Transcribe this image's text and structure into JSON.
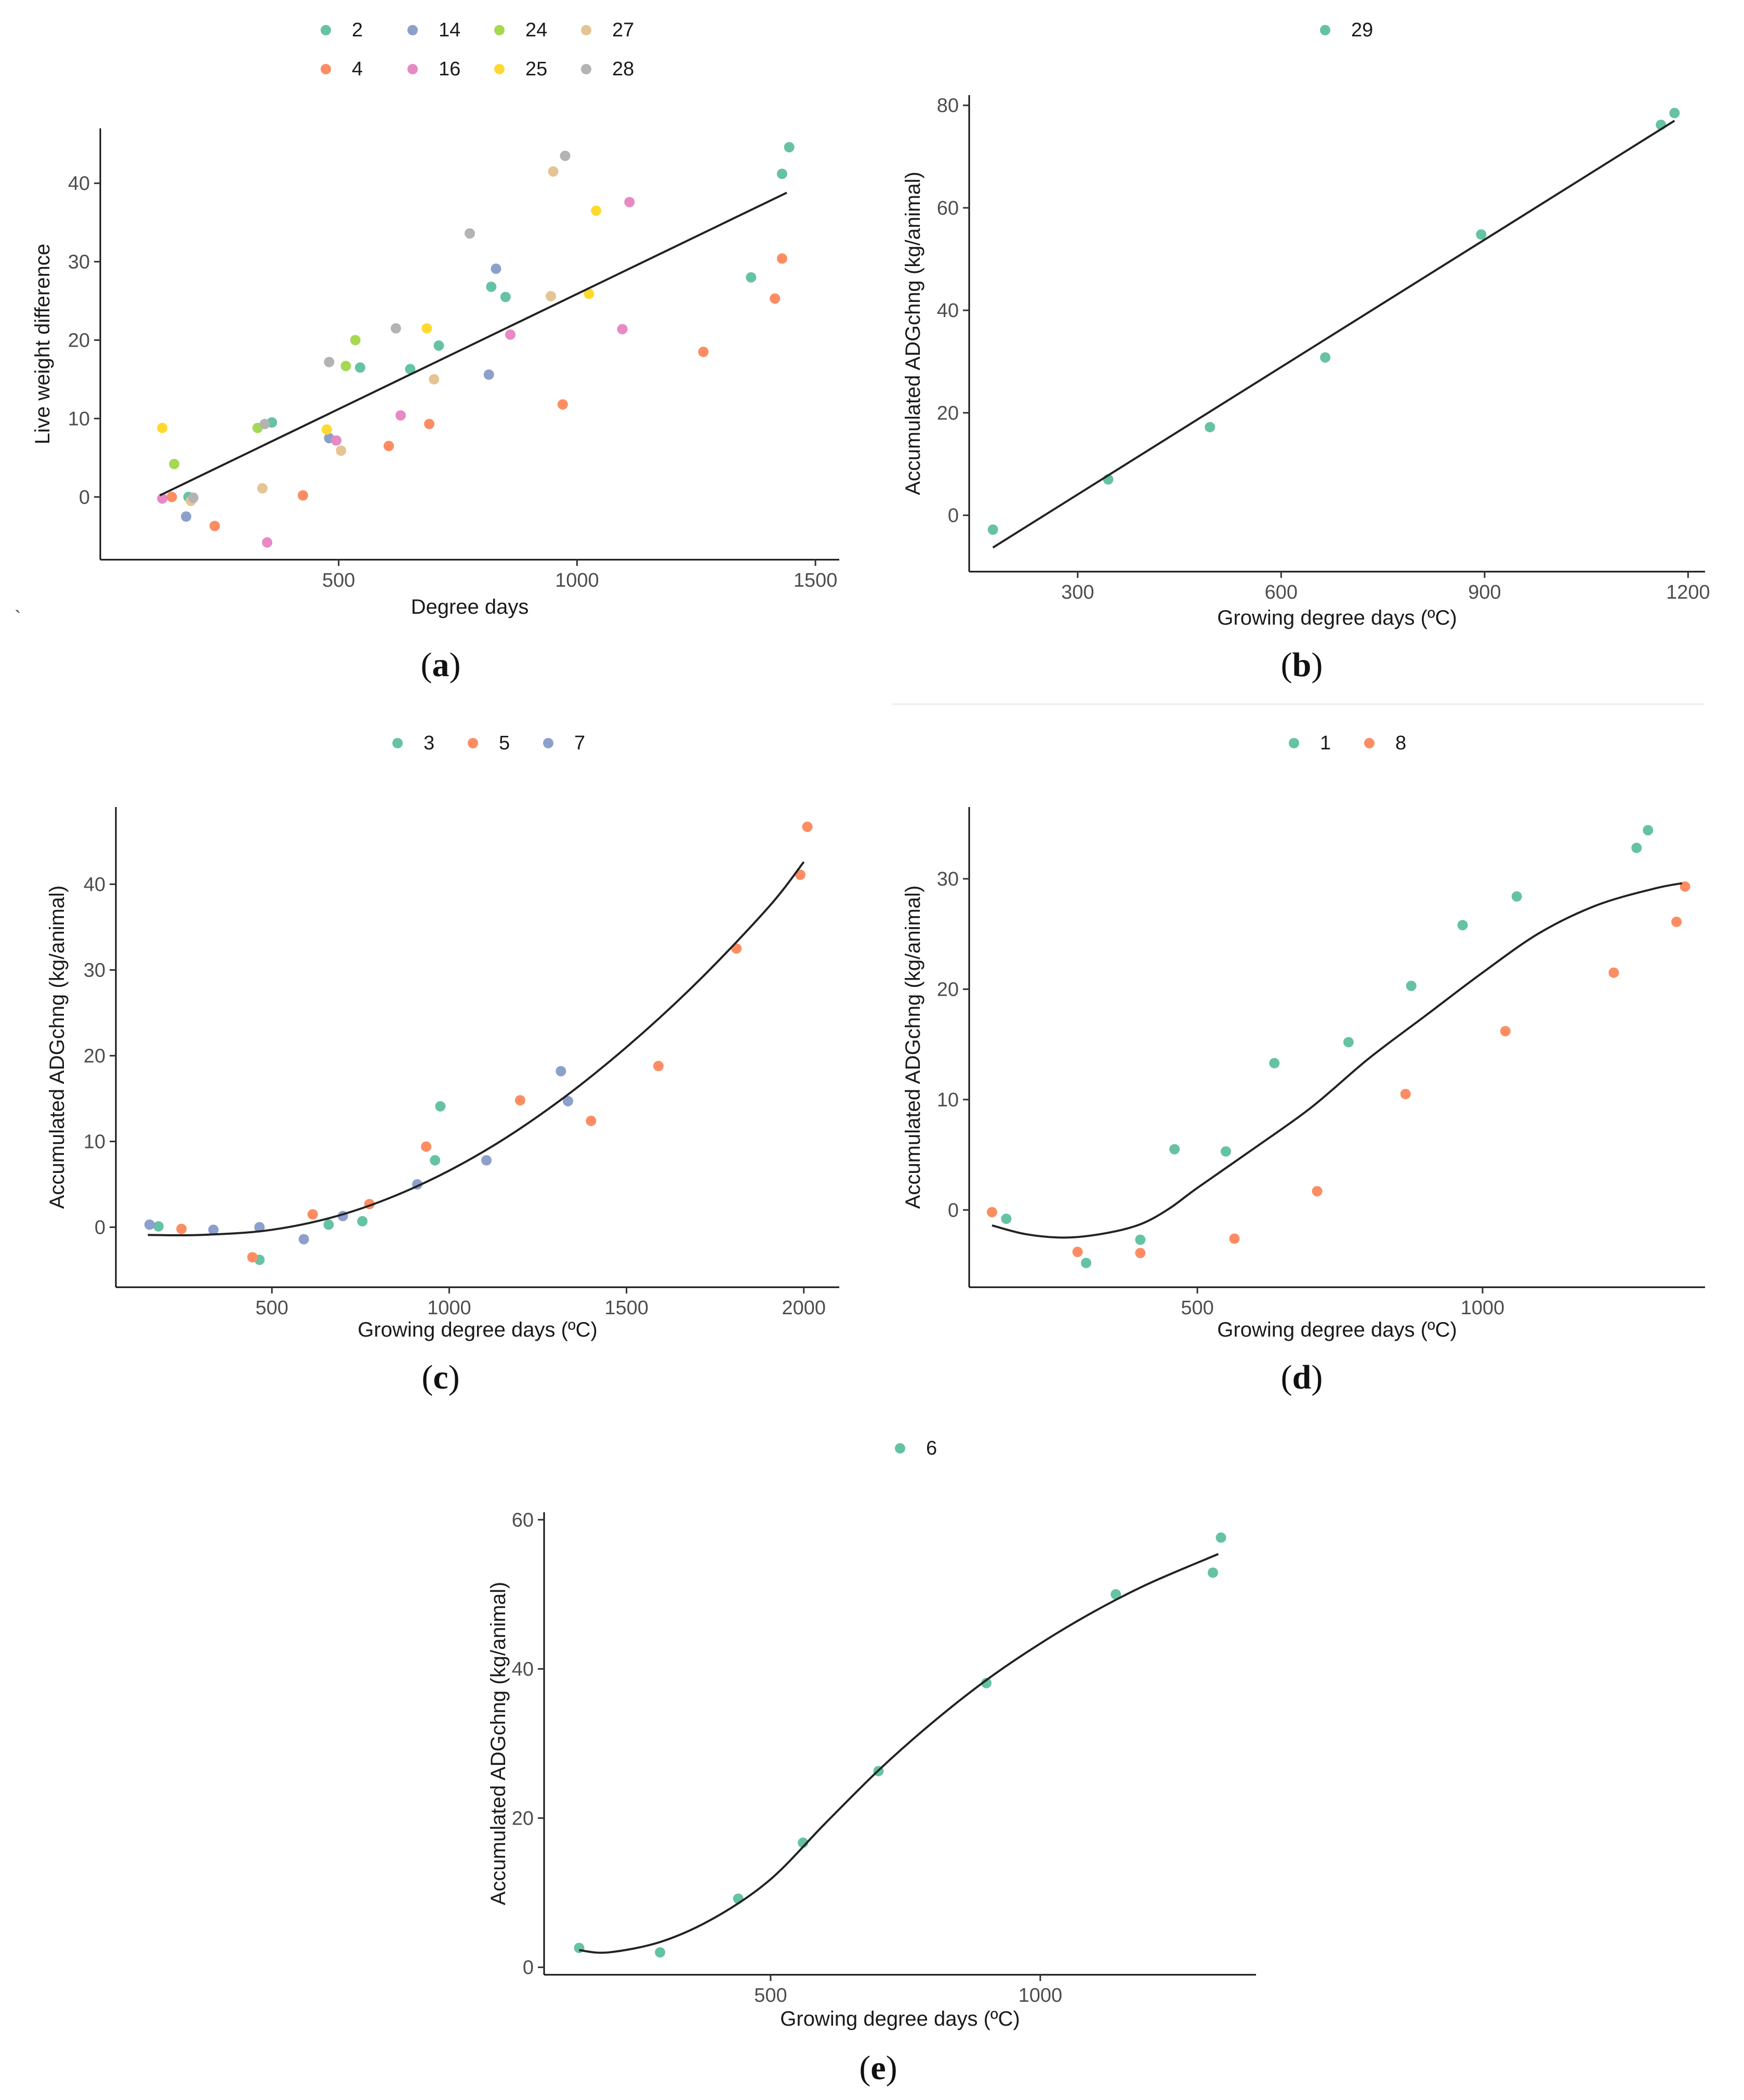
{
  "figure": {
    "stray_mark": "`"
  },
  "chart_data": [
    {
      "id": "a",
      "type": "scatter",
      "panel_label": "a",
      "xlabel": "Degree days",
      "ylabel": "Live weight difference",
      "xlim": [
        0,
        1550
      ],
      "ylim": [
        -8,
        47
      ],
      "xticks": [
        500,
        1000,
        1500
      ],
      "yticks": [
        0,
        10,
        20,
        30,
        40
      ],
      "legend_position": "top",
      "trend": {
        "type": "linear",
        "points": [
          [
            125,
            0.2
          ],
          [
            1440,
            38.8
          ]
        ]
      },
      "series": [
        {
          "name": "2",
          "color": "#66c2a5",
          "points": [
            [
              185,
              0
            ],
            [
              360,
              9.5
            ],
            [
              545,
              16.5
            ],
            [
              650,
              16.3
            ],
            [
              710,
              19.3
            ],
            [
              820,
              26.8
            ],
            [
              850,
              25.5
            ],
            [
              1365,
              28
            ],
            [
              1430,
              41.2
            ],
            [
              1445,
              44.6
            ]
          ]
        },
        {
          "name": "4",
          "color": "#fc8d62",
          "points": [
            [
              150,
              0
            ],
            [
              240,
              -3.7
            ],
            [
              425,
              0.2
            ],
            [
              605,
              6.5
            ],
            [
              690,
              9.3
            ],
            [
              970,
              11.8
            ],
            [
              1265,
              18.5
            ],
            [
              1415,
              25.3
            ],
            [
              1430,
              30.4
            ]
          ]
        },
        {
          "name": "14",
          "color": "#8da0cb",
          "points": [
            [
              180,
              -2.5
            ],
            [
              480,
              7.5
            ],
            [
              815,
              15.6
            ],
            [
              830,
              29.1
            ]
          ]
        },
        {
          "name": "16",
          "color": "#e78ac3",
          "points": [
            [
              130,
              -0.2
            ],
            [
              350,
              -5.8
            ],
            [
              495,
              7.2
            ],
            [
              630,
              10.4
            ],
            [
              860,
              20.7
            ],
            [
              1095,
              21.4
            ],
            [
              1110,
              37.6
            ]
          ]
        },
        {
          "name": "24",
          "color": "#a6d854",
          "points": [
            [
              155,
              4.2
            ],
            [
              330,
              8.8
            ],
            [
              515,
              16.7
            ],
            [
              535,
              20
            ]
          ]
        },
        {
          "name": "25",
          "color": "#ffd92f",
          "points": [
            [
              130,
              8.8
            ],
            [
              475,
              8.6
            ],
            [
              685,
              21.5
            ],
            [
              1025,
              25.9
            ],
            [
              1040,
              36.5
            ]
          ]
        },
        {
          "name": "27",
          "color": "#e5c494",
          "points": [
            [
              190,
              -0.5
            ],
            [
              340,
              1.1
            ],
            [
              505,
              5.9
            ],
            [
              700,
              15
            ],
            [
              945,
              25.6
            ],
            [
              950,
              41.5
            ]
          ]
        },
        {
          "name": "28",
          "color": "#b3b3b3",
          "points": [
            [
              195,
              -0.1
            ],
            [
              345,
              9.3
            ],
            [
              480,
              17.2
            ],
            [
              620,
              21.5
            ],
            [
              775,
              33.6
            ],
            [
              975,
              43.5
            ]
          ]
        }
      ]
    },
    {
      "id": "b",
      "type": "scatter",
      "panel_label": "b",
      "xlabel": "Growing degree days (ºC)",
      "ylabel": "Accumulated ADGchng (kg/animal)",
      "xlim": [
        140,
        1225
      ],
      "ylim": [
        -11,
        82
      ],
      "xticks": [
        300,
        600,
        900,
        1200
      ],
      "yticks": [
        0,
        20,
        40,
        60,
        80
      ],
      "legend_position": "top",
      "trend": {
        "type": "linear",
        "points": [
          [
            175,
            -6.3
          ],
          [
            1180,
            77
          ]
        ]
      },
      "series": [
        {
          "name": "29",
          "color": "#66c2a5",
          "points": [
            [
              175,
              -2.8
            ],
            [
              345,
              7
            ],
            [
              495,
              17.2
            ],
            [
              665,
              30.8
            ],
            [
              895,
              54.8
            ],
            [
              1160,
              76.2
            ],
            [
              1180,
              78.5
            ]
          ]
        }
      ]
    },
    {
      "id": "c",
      "type": "scatter",
      "panel_label": "c",
      "xlabel": "Growing degree days (ºC)",
      "ylabel": "Accumulated ADGchng (kg/animal)",
      "xlim": [
        60,
        2100
      ],
      "ylim": [
        -7,
        49
      ],
      "xticks": [
        500,
        1000,
        1500,
        2000
      ],
      "yticks": [
        0,
        10,
        20,
        30,
        40
      ],
      "legend_position": "top",
      "trend": {
        "type": "smooth",
        "points": [
          [
            150,
            -0.9
          ],
          [
            300,
            -0.9
          ],
          [
            500,
            -0.3
          ],
          [
            700,
            1.5
          ],
          [
            900,
            4.6
          ],
          [
            1100,
            8.9
          ],
          [
            1300,
            14.4
          ],
          [
            1500,
            21
          ],
          [
            1700,
            28.6
          ],
          [
            1900,
            37.3
          ],
          [
            2000,
            42.6
          ]
        ]
      },
      "series": [
        {
          "name": "3",
          "color": "#66c2a5",
          "points": [
            [
              180,
              0.1
            ],
            [
              465,
              -3.8
            ],
            [
              660,
              0.3
            ],
            [
              755,
              0.7
            ],
            [
              960,
              7.8
            ],
            [
              975,
              14.1
            ]
          ]
        },
        {
          "name": "5",
          "color": "#fc8d62",
          "points": [
            [
              245,
              -0.2
            ],
            [
              445,
              -3.5
            ],
            [
              615,
              1.5
            ],
            [
              775,
              2.7
            ],
            [
              935,
              9.4
            ],
            [
              1200,
              14.8
            ],
            [
              1400,
              12.4
            ],
            [
              1590,
              18.8
            ],
            [
              1810,
              32.5
            ],
            [
              1990,
              41.1
            ],
            [
              2010,
              46.7
            ]
          ]
        },
        {
          "name": "7",
          "color": "#8da0cb",
          "points": [
            [
              155,
              0.3
            ],
            [
              335,
              -0.3
            ],
            [
              465,
              0
            ],
            [
              590,
              -1.4
            ],
            [
              700,
              1.3
            ],
            [
              910,
              5
            ],
            [
              1105,
              7.8
            ],
            [
              1315,
              18.2
            ],
            [
              1335,
              14.7
            ]
          ]
        }
      ]
    },
    {
      "id": "d",
      "type": "scatter",
      "panel_label": "d",
      "xlabel": "Growing degree days (ºC)",
      "ylabel": "Accumulated ADGchng (kg/animal)",
      "xlim": [
        100,
        1390
      ],
      "ylim": [
        -7,
        36.5
      ],
      "xticks": [
        500,
        1000
      ],
      "yticks": [
        0,
        10,
        20,
        30
      ],
      "legend_position": "top",
      "trend": {
        "type": "smooth",
        "points": [
          [
            140,
            -1.4
          ],
          [
            200,
            -2.2
          ],
          [
            270,
            -2.5
          ],
          [
            340,
            -2.1
          ],
          [
            400,
            -1.3
          ],
          [
            450,
            0.1
          ],
          [
            500,
            2
          ],
          [
            600,
            5.6
          ],
          [
            700,
            9.3
          ],
          [
            800,
            13.7
          ],
          [
            900,
            17.6
          ],
          [
            1000,
            21.5
          ],
          [
            1100,
            25.1
          ],
          [
            1200,
            27.6
          ],
          [
            1300,
            29.1
          ],
          [
            1350,
            29.6
          ]
        ]
      },
      "series": [
        {
          "name": "1",
          "color": "#66c2a5",
          "points": [
            [
              165,
              -0.8
            ],
            [
              305,
              -4.8
            ],
            [
              400,
              -2.7
            ],
            [
              460,
              5.5
            ],
            [
              550,
              5.3
            ],
            [
              635,
              13.3
            ],
            [
              765,
              15.2
            ],
            [
              875,
              20.3
            ],
            [
              965,
              25.8
            ],
            [
              1060,
              28.4
            ],
            [
              1270,
              32.8
            ],
            [
              1290,
              34.4
            ]
          ]
        },
        {
          "name": "8",
          "color": "#fc8d62",
          "points": [
            [
              140,
              -0.2
            ],
            [
              290,
              -3.8
            ],
            [
              400,
              -3.9
            ],
            [
              565,
              -2.6
            ],
            [
              710,
              1.7
            ],
            [
              865,
              10.5
            ],
            [
              1040,
              16.2
            ],
            [
              1230,
              21.5
            ],
            [
              1340,
              26.1
            ],
            [
              1355,
              29.3
            ]
          ]
        }
      ]
    },
    {
      "id": "e",
      "type": "scatter",
      "panel_label": "e",
      "xlabel": "Growing degree days (ºC)",
      "ylabel": "Accumulated ADGchng (kg/animal)",
      "xlim": [
        80,
        1400
      ],
      "ylim": [
        -1,
        61
      ],
      "xticks": [
        500,
        1000
      ],
      "yticks": [
        0,
        20,
        40,
        60
      ],
      "legend_position": "top",
      "trend": {
        "type": "smooth",
        "points": [
          [
            145,
            2.3
          ],
          [
            200,
            2
          ],
          [
            300,
            3.5
          ],
          [
            400,
            6.8
          ],
          [
            500,
            11.8
          ],
          [
            600,
            19.2
          ],
          [
            700,
            26.4
          ],
          [
            800,
            32.8
          ],
          [
            900,
            38.5
          ],
          [
            1000,
            43.4
          ],
          [
            1100,
            47.7
          ],
          [
            1200,
            51.4
          ],
          [
            1330,
            55.4
          ]
        ]
      },
      "series": [
        {
          "name": "6",
          "color": "#66c2a5",
          "points": [
            [
              145,
              2.6
            ],
            [
              295,
              2
            ],
            [
              440,
              9.2
            ],
            [
              560,
              16.7
            ],
            [
              700,
              26.3
            ],
            [
              900,
              38.1
            ],
            [
              1140,
              50
            ],
            [
              1320,
              52.9
            ],
            [
              1335,
              57.6
            ]
          ]
        }
      ]
    }
  ]
}
